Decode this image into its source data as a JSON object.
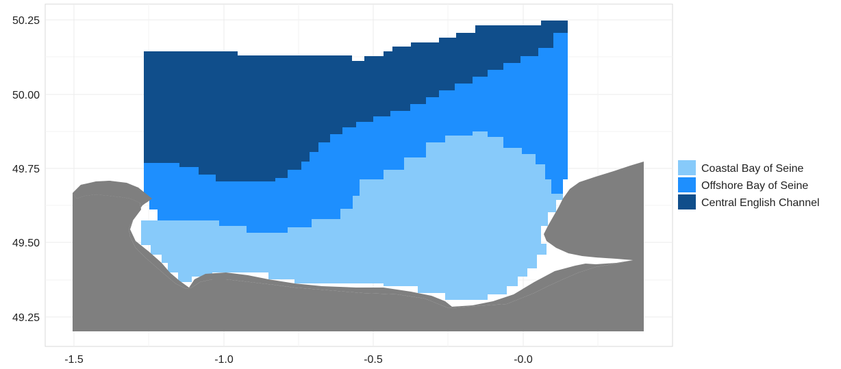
{
  "map": {
    "x_axis": {
      "ticks": [
        {
          "value": -1.5,
          "label": "-1.5"
        },
        {
          "value": -1.0,
          "label": "-1.0"
        },
        {
          "value": -0.5,
          "label": "-0.5"
        },
        {
          "value": 0.0,
          "label": "-0.0"
        }
      ],
      "range": [
        -1.6,
        0.5
      ]
    },
    "y_axis": {
      "ticks": [
        {
          "value": 50.25,
          "label": "50.25"
        },
        {
          "value": 50.0,
          "label": "50.00"
        },
        {
          "value": 49.75,
          "label": "49.75"
        },
        {
          "value": 49.5,
          "label": "49.50"
        },
        {
          "value": 49.25,
          "label": "49.25"
        }
      ],
      "range": [
        49.15,
        50.3
      ]
    },
    "grid": true,
    "colors": {
      "land": "#7f7f7f",
      "coastal": "#87cafa",
      "offshore": "#1e8ffe",
      "central": "#104e8b",
      "grid": "#ebebeb"
    },
    "legend": {
      "position": "right",
      "items": [
        {
          "label": "Coastal Bay of Seine",
          "color": "#87cafa"
        },
        {
          "label": "Offshore Bay of Seine",
          "color": "#1e8ffe"
        },
        {
          "label": "Central English Channel",
          "color": "#104e8b"
        }
      ]
    },
    "regions": [
      "Central English Channel",
      "Offshore Bay of Seine",
      "Coastal Bay of Seine"
    ]
  }
}
